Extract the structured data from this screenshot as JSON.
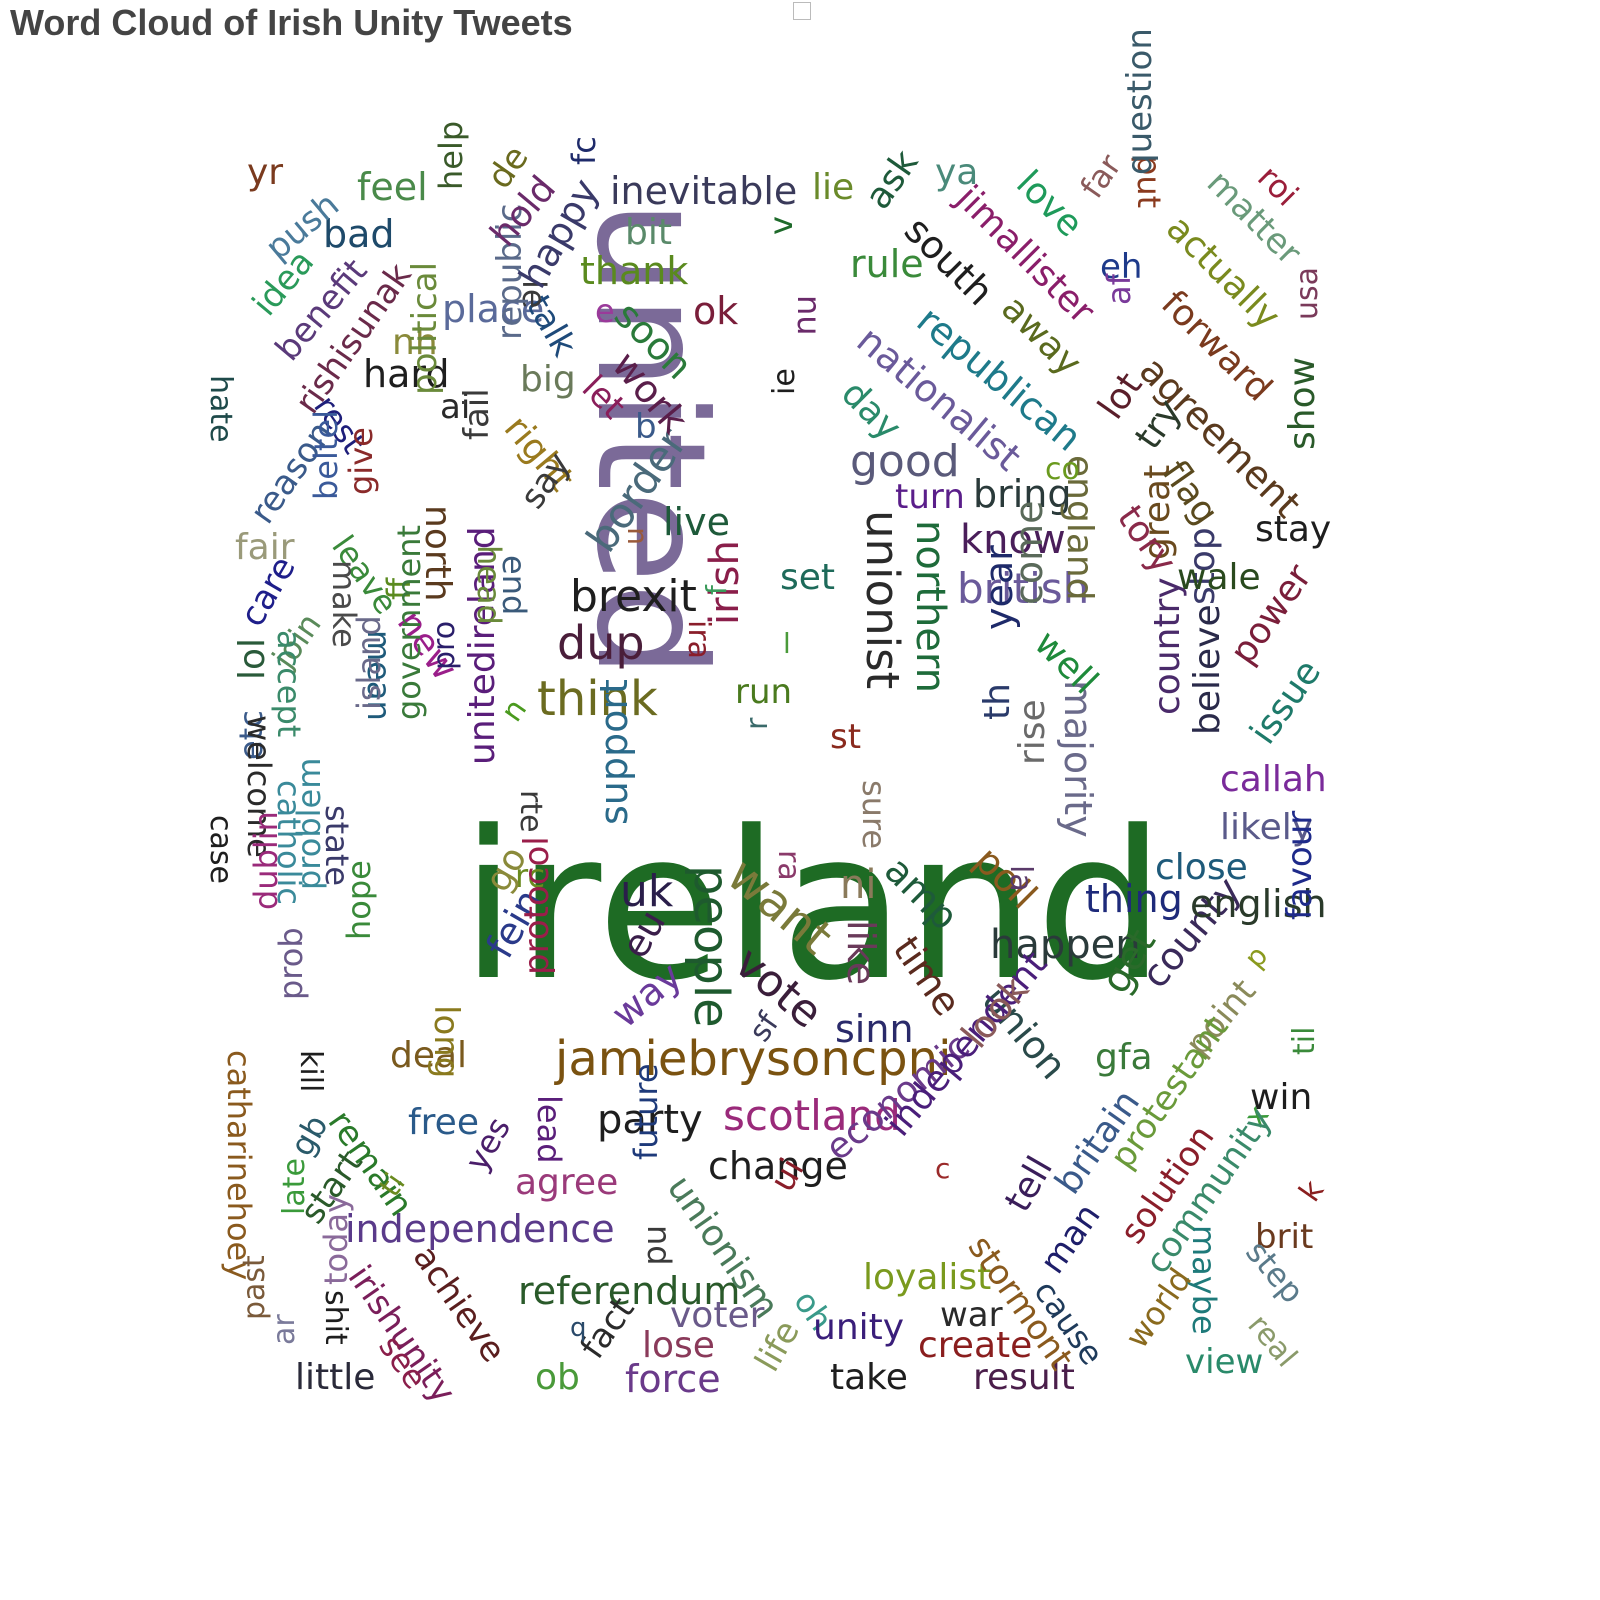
{
  "title": "Word Cloud of Irish Unity Tweets",
  "words": [
    {
      "text": "ireland",
      "color": "#1e6b24"
    },
    {
      "text": "united",
      "color": "#7b6a98"
    },
    {
      "text": "jamiebrysoncpni",
      "color": "#7a5210"
    },
    {
      "text": "want",
      "color": "#7a7a3a"
    },
    {
      "text": "people",
      "color": "#1e5a2e"
    },
    {
      "text": "unionist",
      "color": "#2a2a2a"
    },
    {
      "text": "think",
      "color": "#6b6b20"
    },
    {
      "text": "brexit",
      "color": "#1e1e1e"
    },
    {
      "text": "dup",
      "color": "#4a1e3a"
    },
    {
      "text": "irish",
      "color": "#8a1e4a"
    },
    {
      "text": "uk",
      "color": "#2a1e4a"
    },
    {
      "text": "good",
      "color": "#5a5a7a"
    },
    {
      "text": "northern",
      "color": "#1e6b3a"
    },
    {
      "text": "vote",
      "color": "#3a1e3a"
    },
    {
      "text": "british",
      "color": "#6a5a9a"
    },
    {
      "text": "scotland",
      "color": "#9a2a7a"
    },
    {
      "text": "border",
      "color": "#4a6a7a"
    },
    {
      "text": "party",
      "color": "#1e1e1e"
    },
    {
      "text": "change",
      "color": "#1e1e1e"
    },
    {
      "text": "happen",
      "color": "#2a3a3a"
    },
    {
      "text": "referendum",
      "color": "#2a5a2a"
    },
    {
      "text": "independence",
      "color": "#5a3a8a"
    },
    {
      "text": "nationalist",
      "color": "#6a5a9a"
    },
    {
      "text": "republican",
      "color": "#1e7a8a"
    },
    {
      "text": "agreement",
      "color": "#5a3a1e"
    },
    {
      "text": "inevitable",
      "color": "#3a3a5a"
    },
    {
      "text": "know",
      "color": "#4a1e5a"
    },
    {
      "text": "bring",
      "color": "#2a3a3a"
    },
    {
      "text": "ni",
      "color": "#8a7a5a"
    },
    {
      "text": "eu",
      "color": "#3a1e4a"
    },
    {
      "text": "like",
      "color": "#6a3a5a"
    },
    {
      "text": "sinn",
      "color": "#2a2a6a"
    },
    {
      "text": "time",
      "color": "#5a2a1e"
    },
    {
      "text": "union",
      "color": "#2a4a4a"
    },
    {
      "text": "get",
      "color": "#2a6a2a"
    },
    {
      "text": "county",
      "color": "#3a2a5a"
    },
    {
      "text": "support",
      "color": "#2a6a8a"
    },
    {
      "text": "fein",
      "color": "#2a3a8a"
    },
    {
      "text": "unitedireland",
      "color": "#5a1e7a"
    },
    {
      "text": "way",
      "color": "#6a3a9a"
    },
    {
      "text": "economic",
      "color": "#6a3a8a"
    },
    {
      "text": "independent",
      "color": "#4a1e7a"
    },
    {
      "text": "look",
      "color": "#8a5a5a"
    },
    {
      "text": "unionism",
      "color": "#4a7a5a"
    },
    {
      "text": "amp",
      "color": "#1e5a3a"
    },
    {
      "text": "poll",
      "color": "#8a5a1e"
    },
    {
      "text": "year",
      "color": "#1e2a6a"
    },
    {
      "text": "th",
      "color": "#2a3a6a"
    },
    {
      "text": "come",
      "color": "#5a6a5a"
    },
    {
      "text": "majority",
      "color": "#6a6a8a"
    },
    {
      "text": "england",
      "color": "#6a6a3a"
    },
    {
      "text": "great",
      "color": "#6a4a1e"
    },
    {
      "text": "country",
      "color": "#4a2a6a"
    },
    {
      "text": "believe",
      "color": "#2a2a4a"
    },
    {
      "text": "stop",
      "color": "#3a3a6a"
    },
    {
      "text": "power",
      "color": "#7a1e3a"
    },
    {
      "text": "issue",
      "color": "#1e7a6a"
    },
    {
      "text": "thing",
      "color": "#1e2a7a"
    },
    {
      "text": "english",
      "color": "#2a3a2a"
    },
    {
      "text": "close",
      "color": "#1e5a7a"
    },
    {
      "text": "likely",
      "color": "#5a5a8a"
    },
    {
      "text": "callah",
      "color": "#7a2a9a"
    },
    {
      "text": "stay",
      "color": "#1e1e1e"
    },
    {
      "text": "wale",
      "color": "#2a4a1e"
    },
    {
      "text": "tory",
      "color": "#8a2a4a"
    },
    {
      "text": "flag",
      "color": "#5a4a1e"
    },
    {
      "text": "try",
      "color": "#2a3a2a"
    },
    {
      "text": "lot",
      "color": "#5a1e2a"
    },
    {
      "text": "forward",
      "color": "#7a3a1e"
    },
    {
      "text": "show",
      "color": "#2a5a2a"
    },
    {
      "text": "usa",
      "color": "#7a3a5a"
    },
    {
      "text": "actually",
      "color": "#7a8a1e"
    },
    {
      "text": "matter",
      "color": "#6a9a7a"
    },
    {
      "text": "roi",
      "color": "#9a1e3a"
    },
    {
      "text": "put",
      "color": "#8a3a1e"
    },
    {
      "text": "question",
      "color": "#3a5a6a"
    },
    {
      "text": "eh",
      "color": "#1e3a8a"
    },
    {
      "text": "af",
      "color": "#7a3a9a"
    },
    {
      "text": "far",
      "color": "#8a5a5a"
    },
    {
      "text": "love",
      "color": "#1e9a5a"
    },
    {
      "text": "away",
      "color": "#5a6a1e"
    },
    {
      "text": "jimallister",
      "color": "#8a1e6a"
    },
    {
      "text": "ya",
      "color": "#4a8a7a"
    },
    {
      "text": "south",
      "color": "#1e1e1e"
    },
    {
      "text": "ask",
      "color": "#1e5a3a"
    },
    {
      "text": "rule",
      "color": "#3a8a3a"
    },
    {
      "text": "nu",
      "color": "#6a2a6a"
    },
    {
      "text": "lie",
      "color": "#6a8a2a"
    },
    {
      "text": "day",
      "color": "#2a8a6a"
    },
    {
      "text": "co",
      "color": "#6a9a1e"
    },
    {
      "text": "turn",
      "color": "#5a1e8a"
    },
    {
      "text": "live",
      "color": "#1e5a3a"
    },
    {
      "text": "set",
      "color": "#1e6a5a"
    },
    {
      "text": "run",
      "color": "#4a7a1e"
    },
    {
      "text": "st",
      "color": "#8a2a1e"
    },
    {
      "text": "sure",
      "color": "#8a7a6a"
    },
    {
      "text": "la",
      "color": "#5a3a6a"
    },
    {
      "text": "rise",
      "color": "#6a6a6a"
    },
    {
      "text": "well",
      "color": "#1e8a3a"
    },
    {
      "text": "thank",
      "color": "#5a8a1e"
    },
    {
      "text": "bit",
      "color": "#5a8a6a"
    },
    {
      "text": "ok",
      "color": "#7a1e3a"
    },
    {
      "text": "place",
      "color": "#5a6a9a"
    },
    {
      "text": "soon",
      "color": "#2a7a3a"
    },
    {
      "text": "work",
      "color": "#5a1e4a"
    },
    {
      "text": "let",
      "color": "#8a1e5a"
    },
    {
      "text": "b",
      "color": "#3a5a8a"
    },
    {
      "text": "talk",
      "color": "#1e4a7a"
    },
    {
      "text": "le",
      "color": "#3a3a3a"
    },
    {
      "text": "e",
      "color": "#9a3a9a"
    },
    {
      "text": "ie",
      "color": "#1e1e1e"
    },
    {
      "text": "v",
      "color": "#1e6a2a"
    },
    {
      "text": "big",
      "color": "#6a7a5a"
    },
    {
      "text": "right",
      "color": "#9a7a1e"
    },
    {
      "text": "say",
      "color": "#3a3a3a"
    },
    {
      "text": "republic",
      "color": "#5a6a8a"
    },
    {
      "text": "ai",
      "color": "#2a2a2a"
    },
    {
      "text": "hard",
      "color": "#1e1e1e"
    },
    {
      "text": "nh",
      "color": "#8a8a3a"
    },
    {
      "text": "happy",
      "color": "#3a3a6a"
    },
    {
      "text": "fc",
      "color": "#1e2a6a"
    },
    {
      "text": "hold",
      "color": "#6a2a6a"
    },
    {
      "text": "de",
      "color": "#6a6a1e"
    },
    {
      "text": "help",
      "color": "#3a5a2a"
    },
    {
      "text": "feel",
      "color": "#4a8a4a"
    },
    {
      "text": "bad",
      "color": "#1e4a6a"
    },
    {
      "text": "yr",
      "color": "#7a3a1e"
    },
    {
      "text": "push",
      "color": "#4a7a9a"
    },
    {
      "text": "idea",
      "color": "#2a9a5a"
    },
    {
      "text": "benefit",
      "color": "#5a3a7a"
    },
    {
      "text": "rishisunak",
      "color": "#6a2a4a"
    },
    {
      "text": "hate",
      "color": "#1e4a4a"
    },
    {
      "text": "rest",
      "color": "#1e1e7a"
    },
    {
      "text": "reason",
      "color": "#3a5a8a"
    },
    {
      "text": "give",
      "color": "#8a2a2a"
    },
    {
      "text": "political",
      "color": "#6a8a3a"
    },
    {
      "text": "fail",
      "color": "#3a3a3a"
    },
    {
      "text": "north",
      "color": "#5a3a1e"
    },
    {
      "text": "fair",
      "color": "#9a9a7a"
    },
    {
      "text": "care",
      "color": "#1e1e8a"
    },
    {
      "text": "beltel",
      "color": "#3a5a9a"
    },
    {
      "text": "leave",
      "color": "#3a8a3a"
    },
    {
      "text": "make",
      "color": "#4a4a4a"
    },
    {
      "text": "join",
      "color": "#5a8a5a"
    },
    {
      "text": "accept",
      "color": "#3a8a6a"
    },
    {
      "text": "ff",
      "color": "#5a8a1e"
    },
    {
      "text": "mean",
      "color": "#1e5a7a"
    },
    {
      "text": "new",
      "color": "#9a1e8a"
    },
    {
      "text": "head",
      "color": "#6a8a3a"
    },
    {
      "text": "end",
      "color": "#3a5a7a"
    },
    {
      "text": "u",
      "color": "#9a5a3a"
    },
    {
      "text": "f",
      "color": "#3a9a5a"
    },
    {
      "text": "ira",
      "color": "#8a1e2a"
    },
    {
      "text": "l",
      "color": "#4a9a3a"
    },
    {
      "text": "r",
      "color": "#3a6a6a"
    },
    {
      "text": "pro",
      "color": "#2a1e6a"
    },
    {
      "text": "n",
      "color": "#4a9a1e"
    },
    {
      "text": "lol",
      "color": "#2a5a3a"
    },
    {
      "text": "etc",
      "color": "#3a5a8a"
    },
    {
      "text": "welcome",
      "color": "#2a2a2a"
    },
    {
      "text": "catholic",
      "color": "#3a8a9a"
    },
    {
      "text": "island",
      "color": "#6a6a8a"
    },
    {
      "text": "state",
      "color": "#3a3a6a"
    },
    {
      "text": "government",
      "color": "#3a7a3a"
    },
    {
      "text": "case",
      "color": "#1e1e1e"
    },
    {
      "text": "rte",
      "color": "#3a3a3a"
    },
    {
      "text": "rc",
      "color": "#6a8a1e"
    },
    {
      "text": "go",
      "color": "#8a8a3a"
    },
    {
      "text": "ra",
      "color": "#8a3a6a"
    },
    {
      "text": "dublin",
      "color": "#9a2a7a"
    },
    {
      "text": "problem",
      "color": "#3a8a9a"
    },
    {
      "text": "hope",
      "color": "#3a8a3a"
    },
    {
      "text": "kill",
      "color": "#1e1e1e"
    },
    {
      "text": "prob",
      "color": "#6a5a8a"
    },
    {
      "text": "deal",
      "color": "#7a5a1e"
    },
    {
      "text": "long",
      "color": "#8a7a1e"
    },
    {
      "text": "protocol",
      "color": "#9a1e4a"
    },
    {
      "text": "lead",
      "color": "#5a1e7a"
    },
    {
      "text": "sf",
      "color": "#3a3a5a"
    },
    {
      "text": "gfa",
      "color": "#3a7a3a"
    },
    {
      "text": "point",
      "color": "#8a8a5a"
    },
    {
      "text": "p",
      "color": "#8a9a1e"
    },
    {
      "text": "favour",
      "color": "#1e2a8a"
    },
    {
      "text": "til",
      "color": "#3a8a3a"
    },
    {
      "text": "win",
      "color": "#1e1e1e"
    },
    {
      "text": "catharinehoey",
      "color": "#8a5a1e"
    },
    {
      "text": "gb",
      "color": "#2a5a6a"
    },
    {
      "text": "remain",
      "color": "#2a7a2a"
    },
    {
      "text": "free",
      "color": "#2a5a8a"
    },
    {
      "text": "yes",
      "color": "#4a1e6a"
    },
    {
      "text": "agree",
      "color": "#9a3a7a"
    },
    {
      "text": "future",
      "color": "#1e3a7a"
    },
    {
      "text": "nd",
      "color": "#3a3a3a"
    },
    {
      "text": "ui",
      "color": "#8a1e2a"
    },
    {
      "text": "c",
      "color": "#9a2a2a"
    },
    {
      "text": "tell",
      "color": "#3a1e5a"
    },
    {
      "text": "britain",
      "color": "#3a5a8a"
    },
    {
      "text": "protestant",
      "color": "#6a9a3a"
    },
    {
      "text": "x",
      "color": "#3a9a3a"
    },
    {
      "text": "community",
      "color": "#3a8a6a"
    },
    {
      "text": "solution",
      "color": "#8a1e2a"
    },
    {
      "text": "man",
      "color": "#1e1e6a"
    },
    {
      "text": "maybe",
      "color": "#1e7a7a"
    },
    {
      "text": "k",
      "color": "#8a1e1e"
    },
    {
      "text": "brit",
      "color": "#6a3a1e"
    },
    {
      "text": "step",
      "color": "#5a7a8a"
    },
    {
      "text": "start",
      "color": "#2a5a2a"
    },
    {
      "text": "ti",
      "color": "#6a8a1e"
    },
    {
      "text": "late",
      "color": "#3a9a3a"
    },
    {
      "text": "irishunity",
      "color": "#7a1e5a"
    },
    {
      "text": "achieve",
      "color": "#5a1e1e"
    },
    {
      "text": "today",
      "color": "#8a6a9a"
    },
    {
      "text": "shit",
      "color": "#1e1e1e"
    },
    {
      "text": "past",
      "color": "#7a5a3a"
    },
    {
      "text": "ar",
      "color": "#7a7a9a"
    },
    {
      "text": "see",
      "color": "#8a1e4a"
    },
    {
      "text": "little",
      "color": "#2a2a3a"
    },
    {
      "text": "ob",
      "color": "#4a9a3a"
    },
    {
      "text": "fact",
      "color": "#2a2a2a"
    },
    {
      "text": "q",
      "color": "#2a4a6a"
    },
    {
      "text": "force",
      "color": "#6a3a8a"
    },
    {
      "text": "lose",
      "color": "#8a3a5a"
    },
    {
      "text": "voter",
      "color": "#6a5a8a"
    },
    {
      "text": "life",
      "color": "#8a9a5a"
    },
    {
      "text": "oh",
      "color": "#3a9a8a"
    },
    {
      "text": "unity",
      "color": "#3a1e7a"
    },
    {
      "text": "take",
      "color": "#1e1e1e"
    },
    {
      "text": "loyalist",
      "color": "#7a9a1e"
    },
    {
      "text": "war",
      "color": "#2a2a2a"
    },
    {
      "text": "create",
      "color": "#8a1e1e"
    },
    {
      "text": "result",
      "color": "#4a1e4a"
    },
    {
      "text": "stormont",
      "color": "#8a5a1e"
    },
    {
      "text": "cause",
      "color": "#1e3a5a"
    },
    {
      "text": "world",
      "color": "#8a6a1e"
    },
    {
      "text": "view",
      "color": "#2a8a6a"
    },
    {
      "text": "real",
      "color": "#8a9a6a"
    }
  ]
}
